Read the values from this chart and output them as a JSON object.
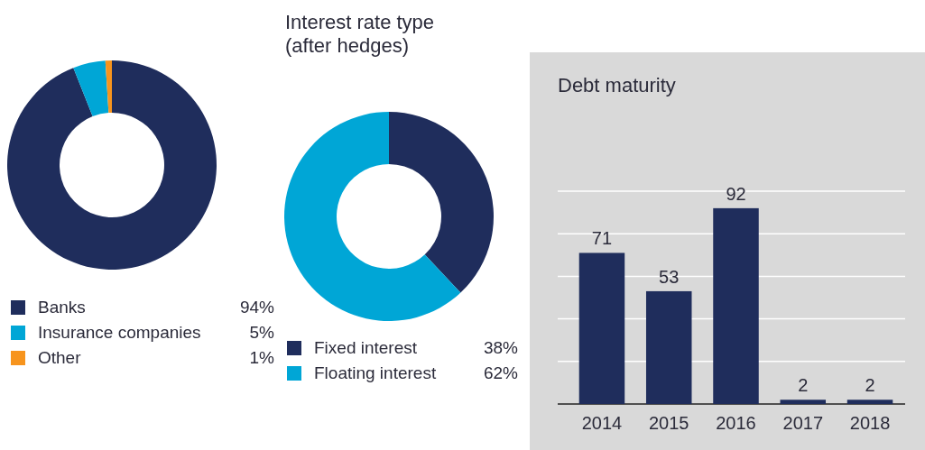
{
  "chart_data": [
    {
      "type": "donut",
      "categories": [
        "Banks",
        "Insurance companies",
        "Other"
      ],
      "values": [
        94,
        5,
        1
      ],
      "colors": [
        "#1f2d5c",
        "#00a6d6",
        "#f7941d"
      ],
      "value_labels": [
        "94%",
        "5%",
        "1%"
      ],
      "legend": "bottom"
    },
    {
      "type": "donut",
      "title": "Interest rate type\n(after hedges)",
      "categories": [
        "Fixed interest",
        "Floating interest"
      ],
      "values": [
        38,
        62
      ],
      "colors": [
        "#1f2d5c",
        "#00a6d6"
      ],
      "value_labels": [
        "38%",
        "62%"
      ],
      "legend": "bottom"
    },
    {
      "type": "bar",
      "title": "Debt maturity",
      "categories": [
        "2014",
        "2015",
        "2016",
        "2017",
        "2018"
      ],
      "values": [
        71,
        53,
        92,
        2,
        2
      ],
      "color": "#1f2d5c",
      "ylim": [
        0,
        100
      ],
      "yticks": [
        {
          "value": 0,
          "label": null
        },
        {
          "value": 20,
          "label": null
        },
        {
          "value": 40,
          "label": null
        },
        {
          "value": 60,
          "label": null
        },
        {
          "value": 80,
          "label": null
        },
        {
          "value": 100,
          "label": null
        }
      ],
      "grid": "y",
      "data_labels": true,
      "tick_labels": "x"
    }
  ]
}
